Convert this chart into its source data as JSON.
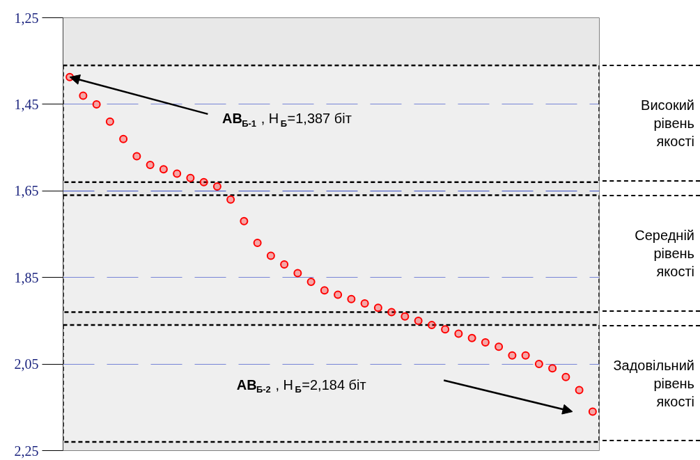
{
  "chart_data": {
    "type": "scatter",
    "marker": "circle",
    "tick_labels": "y",
    "grid": "y",
    "ylim": [
      2.25,
      1.25
    ],
    "yticks": [
      {
        "value": 1.25,
        "label": "1,25"
      },
      {
        "value": 1.45,
        "label": "1,45"
      },
      {
        "value": 1.65,
        "label": "1,65"
      },
      {
        "value": 1.85,
        "label": "1,85"
      },
      {
        "value": 2.05,
        "label": "2,05"
      },
      {
        "value": 2.25,
        "label": "2,25"
      }
    ],
    "categories": [
      null,
      null,
      null,
      null,
      null,
      null,
      null,
      null,
      null,
      null,
      null,
      null,
      null,
      null,
      null,
      null,
      null,
      null,
      null,
      null,
      null,
      null,
      null,
      null,
      null,
      null,
      null,
      null,
      null,
      null,
      null,
      null,
      null,
      null,
      null,
      null,
      null,
      null,
      null,
      null
    ],
    "series": [
      {
        "color": "#ff0000",
        "values": [
          1.387,
          1.43,
          1.45,
          1.49,
          1.53,
          1.57,
          1.59,
          1.6,
          1.61,
          1.62,
          1.63,
          1.64,
          1.67,
          1.72,
          1.77,
          1.8,
          1.82,
          1.84,
          1.86,
          1.88,
          1.89,
          1.9,
          1.91,
          1.92,
          1.93,
          1.94,
          1.95,
          1.96,
          1.97,
          1.98,
          1.99,
          2.0,
          2.01,
          2.03,
          2.03,
          2.05,
          2.06,
          2.08,
          2.11,
          2.16
        ]
      }
    ],
    "bands": [
      {
        "axis": "y",
        "from": 1.36,
        "to": 1.63,
        "label": "Високий рівень якості",
        "color": "#000000"
      },
      {
        "axis": "y",
        "from": 1.66,
        "to": 1.93,
        "label": "Середній рівень якості",
        "color": "#000000"
      },
      {
        "axis": "y",
        "from": 1.96,
        "to": 2.23,
        "label": "Задовільний рівень якості",
        "color": "#000000"
      }
    ],
    "annotations": [
      "АВ$_{Б-1}$, Н$_{Б}$=1,387 біт",
      "АВ$_{Б-2}$, Н$_{Б}$=2,184 біт"
    ]
  }
}
